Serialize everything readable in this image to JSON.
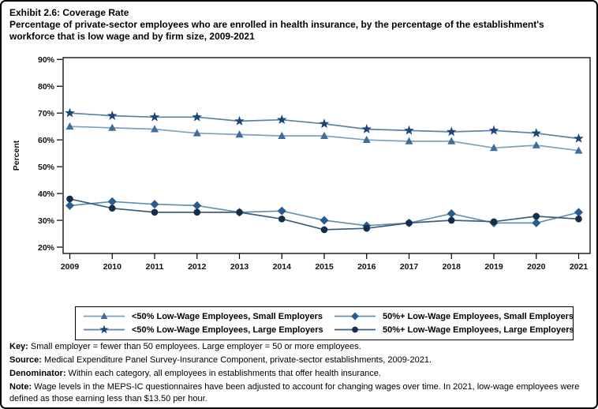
{
  "header": {
    "title": "Exhibit 2.6: Coverage Rate",
    "subtitle": "Percentage of private-sector employees who are enrolled in health insurance, by the percentage of the establishment's workforce that is low wage and by firm size, 2009-2021"
  },
  "chart_data": {
    "type": "line",
    "title": "Exhibit 2.6: Coverage Rate",
    "xlabel": "",
    "ylabel": "Percent",
    "ylim": [
      20,
      90
    ],
    "grid": false,
    "legend_position": "bottom",
    "y_ticks": [
      "90%",
      "80%",
      "70%",
      "60%",
      "50%",
      "40%",
      "30%",
      "20%"
    ],
    "y_tick_values": [
      90,
      80,
      70,
      60,
      50,
      40,
      30,
      20
    ],
    "categories": [
      "2009",
      "2010",
      "2011",
      "2012",
      "2013",
      "2014",
      "2015",
      "2016",
      "2017",
      "2018",
      "2019",
      "2020",
      "2021"
    ],
    "series": [
      {
        "name": "<50% Low-Wage Employees, Small Employers",
        "marker": "triangle",
        "color": "#3F6E9A",
        "line_color": "#7FA1C1",
        "values": [
          65,
          64.5,
          64,
          62.5,
          62,
          61.5,
          61.5,
          60,
          59.5,
          59.5,
          57,
          58,
          56
        ]
      },
      {
        "name": "50%+ Low-Wage Employees, Small Employers",
        "marker": "diamond",
        "color": "#2A5D8C",
        "line_color": "#6290B2",
        "values": [
          35.5,
          37,
          36,
          35.5,
          33,
          33.5,
          30,
          28,
          29,
          32.5,
          29,
          29,
          33
        ]
      },
      {
        "name": "<50% Low-Wage Employees, Large Employers",
        "marker": "star",
        "color": "#1B4677",
        "line_color": "#5A82A6",
        "values": [
          70,
          69,
          68.5,
          68.5,
          67,
          67.5,
          66,
          64,
          63.5,
          63,
          63.5,
          62.5,
          60.5
        ]
      },
      {
        "name": "50%+ Low-Wage Employees, Large Employers",
        "marker": "circle",
        "color": "#152E4D",
        "line_color": "#3F5C7A",
        "values": [
          38,
          34.5,
          33,
          33,
          33,
          30.5,
          26.5,
          27,
          29,
          30,
          29.5,
          31.5,
          30.5
        ]
      }
    ]
  },
  "footer": {
    "key_label": "Key:",
    "key_text": " Small employer = fewer than 50 employees. Large employer = 50 or more employees.",
    "source_label": "Source:",
    "source_text": " Medical Expenditure Panel Survey-Insurance Component, private-sector establishments, 2009-2021.",
    "denominator_label": "Denominator:",
    "denominator_text": " Within each category, all employees in establishments that offer health insurance.",
    "note_label": "Note:",
    "note_text": " Wage levels in the MEPS-IC questionnaires have been adjusted to account for changing wages over time. In 2021, low-wage employees were defined as those earning less than $13.50 per hour."
  }
}
